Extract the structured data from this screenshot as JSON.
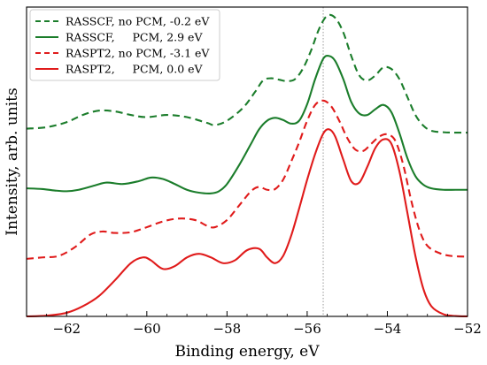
{
  "chart_data": {
    "type": "line",
    "xlabel": "Binding energy, eV",
    "ylabel": "Intensity, arb. units",
    "xlim": [
      -63,
      -52
    ],
    "ylim": [
      0,
      4.3
    ],
    "x_ticks": [
      -62,
      -60,
      -58,
      -56,
      -54,
      -52
    ],
    "x_tick_labels": [
      "−62",
      "−60",
      "−58",
      "−56",
      "−54",
      "−52"
    ],
    "y_ticks_shown": false,
    "grid": false,
    "legend_position": "top-left",
    "vertical_reference_line": {
      "x": -55.6,
      "style": "dotted",
      "color": "#999999"
    },
    "series": [
      {
        "name": "RASSCF, no PCM, -0.2 eV",
        "color": "#1b7d2b",
        "dash": "dashed",
        "x": [
          -63,
          -62.5,
          -62,
          -61.6,
          -61.2,
          -60.8,
          -60.4,
          -60,
          -59.5,
          -59,
          -58.5,
          -58.3,
          -58,
          -57.6,
          -57.3,
          -57.1,
          -56.9,
          -56.7,
          -56.5,
          -56.3,
          -56.1,
          -55.9,
          -55.7,
          -55.5,
          -55.3,
          -55.1,
          -54.9,
          -54.7,
          -54.5,
          -54.3,
          -54.1,
          -53.9,
          -53.7,
          -53.5,
          -53.3,
          -53.1,
          -52.9,
          -52.6,
          -52.3,
          -52
        ],
        "y": [
          2.61,
          2.63,
          2.7,
          2.8,
          2.86,
          2.85,
          2.8,
          2.77,
          2.8,
          2.77,
          2.69,
          2.66,
          2.72,
          2.9,
          3.12,
          3.28,
          3.31,
          3.29,
          3.27,
          3.3,
          3.45,
          3.7,
          4.0,
          4.18,
          4.15,
          3.95,
          3.62,
          3.35,
          3.28,
          3.35,
          3.46,
          3.44,
          3.3,
          3.05,
          2.8,
          2.65,
          2.58,
          2.56,
          2.555,
          2.555
        ]
      },
      {
        "name": "RASSCF,     PCM, 2.9 eV",
        "color": "#1b7d2b",
        "dash": "solid",
        "x": [
          -63,
          -62.6,
          -62.3,
          -62,
          -61.7,
          -61.3,
          -61,
          -60.6,
          -60.2,
          -59.9,
          -59.6,
          -59.3,
          -59,
          -58.7,
          -58.4,
          -58.2,
          -58,
          -57.7,
          -57.4,
          -57.2,
          -57,
          -56.8,
          -56.6,
          -56.4,
          -56.2,
          -56,
          -55.8,
          -55.6,
          -55.45,
          -55.3,
          -55.1,
          -54.9,
          -54.7,
          -54.5,
          -54.3,
          -54.1,
          -53.9,
          -53.7,
          -53.5,
          -53.3,
          -53.1,
          -52.9,
          -52.6,
          -52.3,
          -52
        ],
        "y": [
          1.78,
          1.77,
          1.75,
          1.74,
          1.76,
          1.82,
          1.86,
          1.84,
          1.88,
          1.93,
          1.91,
          1.84,
          1.76,
          1.72,
          1.71,
          1.74,
          1.84,
          2.1,
          2.4,
          2.6,
          2.72,
          2.76,
          2.73,
          2.68,
          2.72,
          2.95,
          3.3,
          3.58,
          3.62,
          3.55,
          3.3,
          2.98,
          2.82,
          2.8,
          2.88,
          2.94,
          2.84,
          2.55,
          2.2,
          1.95,
          1.83,
          1.78,
          1.76,
          1.76,
          1.76
        ]
      },
      {
        "name": "RASPT2, no PCM, -3.1 eV",
        "color": "#e01b1b",
        "dash": "dashed",
        "x": [
          -63,
          -62.6,
          -62.2,
          -61.8,
          -61.4,
          -61.1,
          -60.8,
          -60.4,
          -60,
          -59.6,
          -59.2,
          -58.8,
          -58.5,
          -58.3,
          -58,
          -57.7,
          -57.4,
          -57.2,
          -57,
          -56.8,
          -56.6,
          -56.4,
          -56.2,
          -56,
          -55.8,
          -55.6,
          -55.4,
          -55.2,
          -55,
          -54.8,
          -54.6,
          -54.4,
          -54.2,
          -54,
          -53.8,
          -53.6,
          -53.4,
          -53.2,
          -53,
          -52.7,
          -52.4,
          -52
        ],
        "y": [
          0.8,
          0.82,
          0.84,
          0.96,
          1.14,
          1.18,
          1.16,
          1.17,
          1.24,
          1.32,
          1.36,
          1.34,
          1.26,
          1.24,
          1.34,
          1.54,
          1.74,
          1.8,
          1.76,
          1.77,
          1.9,
          2.15,
          2.42,
          2.72,
          2.94,
          3.0,
          2.92,
          2.72,
          2.48,
          2.32,
          2.3,
          2.4,
          2.5,
          2.53,
          2.44,
          2.1,
          1.6,
          1.2,
          0.98,
          0.88,
          0.84,
          0.83
        ]
      },
      {
        "name": "RASPT2,     PCM, 0.0 eV",
        "color": "#e01b1b",
        "dash": "solid",
        "x": [
          -63,
          -62.5,
          -62,
          -61.6,
          -61.2,
          -60.8,
          -60.4,
          -60.1,
          -59.9,
          -59.6,
          -59.3,
          -59,
          -58.7,
          -58.4,
          -58.1,
          -57.8,
          -57.5,
          -57.2,
          -57,
          -56.8,
          -56.6,
          -56.4,
          -56.2,
          -56,
          -55.8,
          -55.6,
          -55.45,
          -55.3,
          -55.1,
          -54.9,
          -54.7,
          -54.5,
          -54.3,
          -54.1,
          -53.9,
          -53.7,
          -53.5,
          -53.3,
          -53.1,
          -52.9,
          -52.6,
          -52.3,
          -52
        ],
        "y": [
          0.0,
          0.01,
          0.05,
          0.14,
          0.28,
          0.5,
          0.74,
          0.82,
          0.78,
          0.66,
          0.7,
          0.82,
          0.87,
          0.82,
          0.74,
          0.78,
          0.92,
          0.94,
          0.82,
          0.74,
          0.84,
          1.12,
          1.5,
          1.9,
          2.26,
          2.54,
          2.6,
          2.5,
          2.18,
          1.88,
          1.86,
          2.08,
          2.34,
          2.46,
          2.4,
          2.02,
          1.44,
          0.84,
          0.38,
          0.14,
          0.03,
          0.005,
          0.0
        ]
      }
    ]
  }
}
